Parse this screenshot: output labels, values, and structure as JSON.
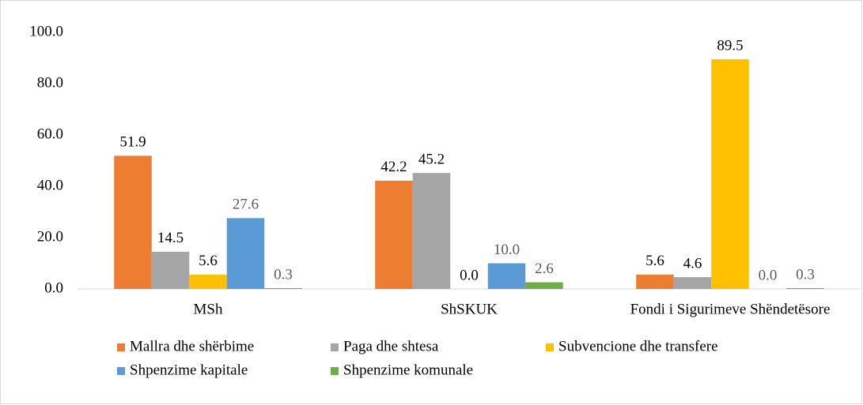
{
  "chart_data": {
    "type": "bar",
    "categories": [
      "MSh",
      "ShSKUK",
      "Fondi i Sigurimeve Shëndetësore"
    ],
    "series": [
      {
        "name": "Mallra dhe shërbime",
        "color": "#ed7d31",
        "label_color": "#000000",
        "values": [
          51.9,
          42.2,
          5.6
        ],
        "value_labels": [
          "51.9",
          "42.2",
          "5.6"
        ]
      },
      {
        "name": "Paga dhe shtesa",
        "color": "#a5a5a5",
        "label_color": "#000000",
        "values": [
          14.5,
          45.2,
          4.6
        ],
        "value_labels": [
          "14.5",
          "45.2",
          "4.6"
        ]
      },
      {
        "name": "Subvencione dhe transfere",
        "color": "#ffc000",
        "label_color": "#000000",
        "values": [
          5.6,
          0.0,
          89.5
        ],
        "value_labels": [
          "5.6",
          "0.0",
          "89.5"
        ]
      },
      {
        "name": "Shpenzime kapitale",
        "color": "#5b9bd5",
        "label_color": "#595959",
        "values": [
          27.6,
          10.0,
          0.0
        ],
        "value_labels": [
          "27.6",
          "10.0",
          "0.0"
        ]
      },
      {
        "name": "Shpenzime komunale",
        "color": "#70ad47",
        "label_color": "#595959",
        "values": [
          0.3,
          2.6,
          0.3
        ],
        "value_labels": [
          "0.3",
          "2.6",
          "0.3"
        ]
      }
    ],
    "ylim": [
      0,
      100
    ],
    "yticks": [
      {
        "value": 0,
        "label": "0.0"
      },
      {
        "value": 20,
        "label": "20.0"
      },
      {
        "value": 40,
        "label": "40.0"
      },
      {
        "value": 60,
        "label": "60.0"
      },
      {
        "value": 80,
        "label": "80.0"
      },
      {
        "value": 100,
        "label": "100.0"
      }
    ],
    "grid": false,
    "legend": "bottom"
  }
}
